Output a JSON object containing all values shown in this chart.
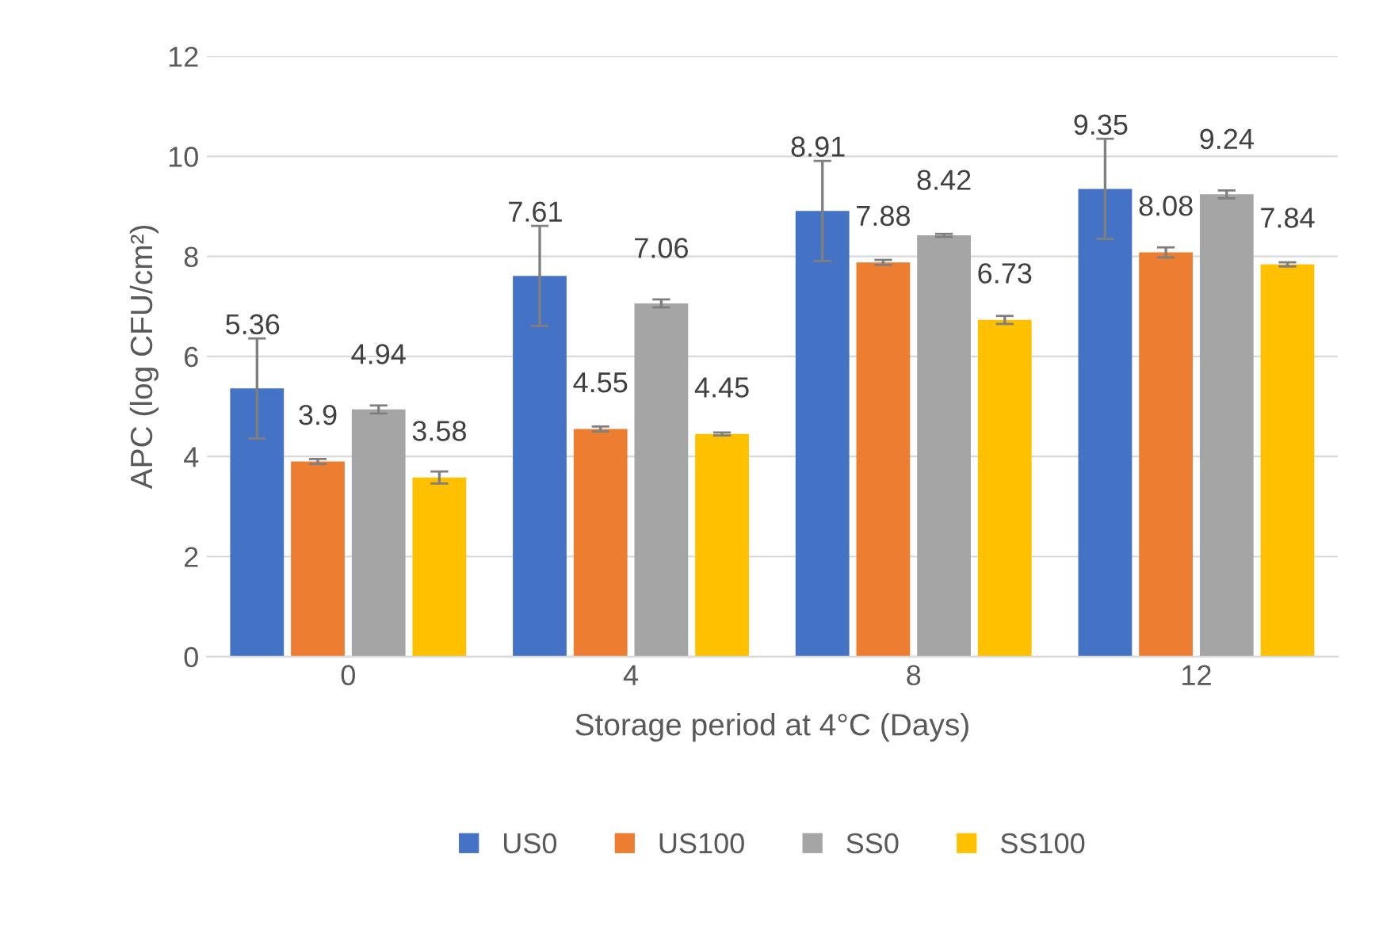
{
  "chart_data": {
    "type": "bar",
    "xlabel": "Storage period at 4°C (Days)",
    "ylabel": "APC (log CFU/cm²)",
    "categories": [
      "0",
      "4",
      "8",
      "12"
    ],
    "series": [
      {
        "name": "US0",
        "color": "#4472c4",
        "values": [
          5.36,
          7.61,
          8.91,
          9.35
        ],
        "errors": [
          1.0,
          1.0,
          1.0,
          1.0
        ]
      },
      {
        "name": "US100",
        "color": "#ed7d31",
        "values": [
          3.9,
          4.55,
          7.88,
          8.08
        ],
        "errors": [
          0.05,
          0.05,
          0.05,
          0.1
        ]
      },
      {
        "name": "SS0",
        "color": "#a5a5a5",
        "values": [
          4.94,
          7.06,
          8.42,
          9.24
        ],
        "errors": [
          0.08,
          0.08,
          0.03,
          0.08
        ]
      },
      {
        "name": "SS100",
        "color": "#ffc000",
        "values": [
          3.58,
          4.45,
          6.73,
          7.84
        ],
        "errors": [
          0.12,
          0.03,
          0.08,
          0.04
        ]
      }
    ],
    "ylim": [
      0,
      12
    ],
    "yticks": [
      0,
      2,
      4,
      6,
      8,
      10,
      12
    ],
    "grid": "y",
    "legend": "bottom",
    "data_labels": true
  }
}
